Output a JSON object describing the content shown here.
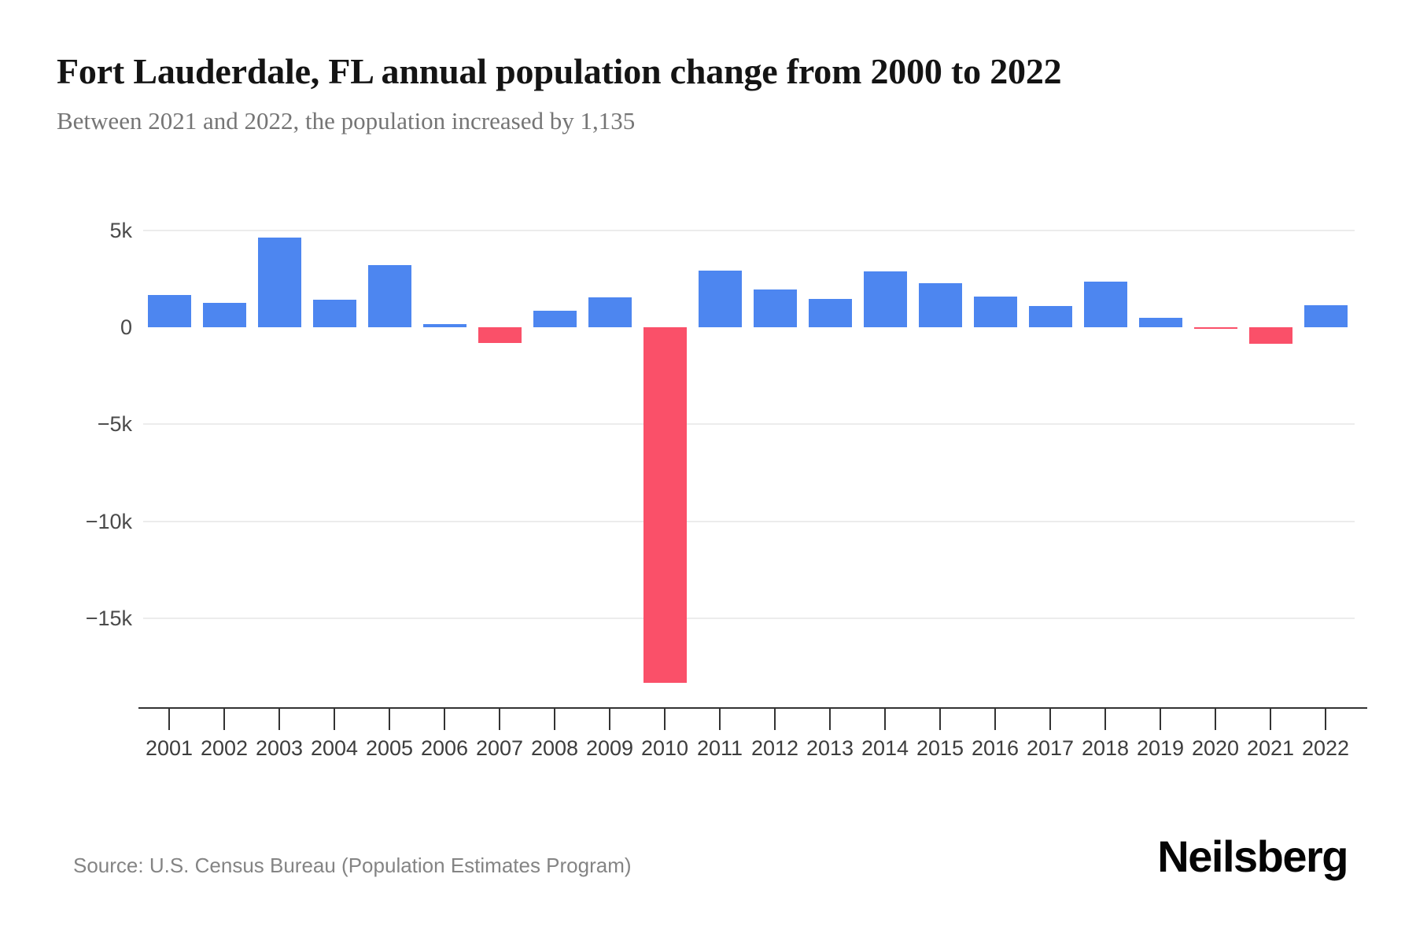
{
  "header": {
    "title": "Fort Lauderdale, FL annual population change from 2000 to 2022",
    "subtitle": "Between 2021 and 2022, the population increased by 1,135"
  },
  "footer": {
    "source": "Source: U.S. Census Bureau (Population Estimates Program)",
    "logo": "Neilsberg"
  },
  "chart_data": {
    "type": "bar",
    "title": "Fort Lauderdale, FL annual population change from 2000 to 2022",
    "subtitle": "Between 2021 and 2022, the population increased by 1,135",
    "categories": [
      "2001",
      "2002",
      "2003",
      "2004",
      "2005",
      "2006",
      "2007",
      "2008",
      "2009",
      "2010",
      "2011",
      "2012",
      "2013",
      "2014",
      "2015",
      "2016",
      "2017",
      "2018",
      "2019",
      "2020",
      "2021",
      "2022"
    ],
    "values": [
      1660,
      1260,
      4630,
      1420,
      3200,
      150,
      -800,
      860,
      1550,
      -18300,
      2900,
      1950,
      1440,
      2870,
      2280,
      1570,
      1080,
      2340,
      480,
      -50,
      -840,
      1135
    ],
    "xlabel": "",
    "ylabel": "",
    "yticks": [
      {
        "label": "5k",
        "value": 5000
      },
      {
        "label": "0",
        "value": 0
      },
      {
        "label": "−5k",
        "value": -5000
      },
      {
        "label": "−10k",
        "value": -10000
      },
      {
        "label": "−15k",
        "value": -15000
      }
    ],
    "ylim": [
      -19600,
      5600
    ],
    "grid": true,
    "legend": false,
    "colors": {
      "positive": "#4d86f0",
      "negative": "#fa5069",
      "gridline": "#ececec",
      "axis": "#333333",
      "tick_label": "#3d3d3d",
      "y_label": "#4a4a4a"
    }
  }
}
